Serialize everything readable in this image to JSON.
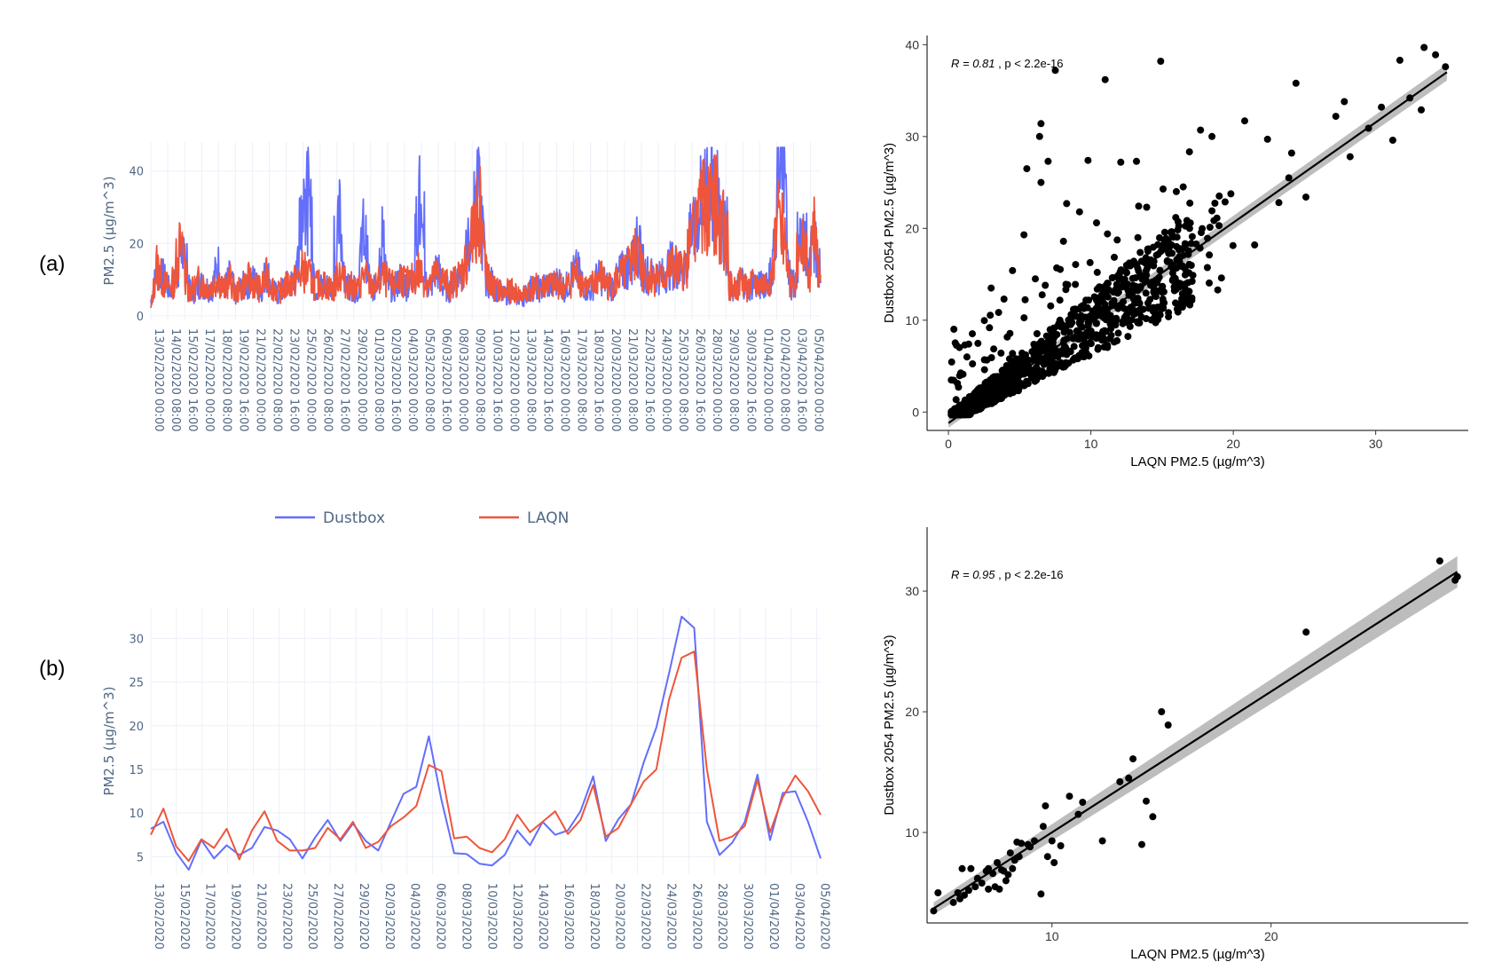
{
  "panels": {
    "a_label": "(a)",
    "b_label": "(b)"
  },
  "legend": {
    "dustbox": "Dustbox",
    "laqn": "LAQN",
    "dustbox_color": "#636efa",
    "laqn_color": "#ef553b"
  },
  "chart_data": [
    {
      "id": "a-timeseries",
      "type": "line",
      "title": "",
      "xlabel": "",
      "ylabel": "PM2.5 (µg/m^3)",
      "ylim": [
        -1,
        48
      ],
      "yticks": [
        0,
        20,
        40
      ],
      "grid": true,
      "xticks": [
        "13/02/2020 00:00",
        "14/02/2020 08:00",
        "15/02/2020 16:00",
        "17/02/2020 00:00",
        "18/02/2020 08:00",
        "19/02/2020 16:00",
        "21/02/2020 00:00",
        "22/02/2020 08:00",
        "23/02/2020 16:00",
        "25/02/2020 00:00",
        "26/02/2020 08:00",
        "27/02/2020 16:00",
        "29/02/2020 00:00",
        "01/03/2020 08:00",
        "02/03/2020 16:00",
        "04/03/2020 00:00",
        "05/03/2020 08:00",
        "06/03/2020 16:00",
        "08/03/2020 00:00",
        "09/03/2020 08:00",
        "10/03/2020 16:00",
        "12/03/2020 00:00",
        "13/03/2020 08:00",
        "14/03/2020 16:00",
        "16/03/2020 00:00",
        "17/03/2020 08:00",
        "18/03/2020 16:00",
        "20/03/2020 00:00",
        "21/03/2020 08:00",
        "22/03/2020 16:00",
        "24/03/2020 00:00",
        "25/03/2020 08:00",
        "26/03/2020 16:00",
        "28/03/2020 00:00",
        "29/03/2020 08:00",
        "30/03/2020 16:00",
        "01/04/2020 00:00",
        "02/04/2020 08:00",
        "03/04/2020 16:00",
        "05/04/2020 00:00"
      ],
      "x_start": "13/02/2020 00:00",
      "x_end": "05/04/2020 16:00",
      "series_note": "hourly",
      "series": [
        {
          "name": "Dustbox",
          "color": "#636efa",
          "hourly_profile": [
            4,
            14,
            12,
            8,
            10,
            22,
            9,
            7,
            10,
            9,
            8,
            16,
            8,
            12,
            6,
            9,
            10,
            11,
            7,
            14,
            8,
            6,
            9,
            10,
            12,
            36,
            37,
            8,
            9,
            9,
            8,
            30,
            10,
            9,
            7,
            28,
            9,
            8,
            25,
            9,
            8,
            12,
            9,
            10,
            38,
            10,
            9,
            15,
            9,
            8,
            10,
            14,
            20,
            30,
            38,
            12,
            10,
            8,
            6,
            7,
            6,
            5,
            8,
            9,
            8,
            10,
            9,
            11,
            8,
            12,
            14,
            10,
            7,
            11,
            12,
            9,
            9,
            13,
            14,
            19,
            21,
            14,
            12,
            13,
            12,
            15,
            16,
            14,
            17,
            27,
            33,
            37,
            46,
            38,
            33,
            10,
            7,
            12,
            8,
            10,
            9,
            11,
            13,
            42,
            40,
            10,
            9,
            30,
            12,
            27,
            11
          ]
        },
        {
          "name": "LAQN",
          "color": "#ef553b",
          "hourly_profile": [
            2,
            16,
            10,
            9,
            11,
            24,
            8,
            8,
            11,
            9,
            9,
            12,
            8,
            11,
            7,
            9,
            11,
            10,
            8,
            12,
            9,
            7,
            9,
            10,
            11,
            14,
            12,
            9,
            10,
            9,
            8,
            14,
            10,
            9,
            8,
            13,
            9,
            9,
            12,
            10,
            9,
            12,
            10,
            11,
            14,
            11,
            10,
            13,
            11,
            9,
            11,
            13,
            18,
            24,
            34,
            13,
            9,
            8,
            7,
            8,
            7,
            6,
            8,
            9,
            8,
            10,
            9,
            10,
            8,
            11,
            13,
            10,
            8,
            11,
            12,
            9,
            10,
            12,
            13,
            17,
            19,
            13,
            12,
            12,
            11,
            14,
            15,
            13,
            16,
            24,
            30,
            34,
            38,
            33,
            30,
            9,
            8,
            11,
            8,
            10,
            9,
            10,
            12,
            30,
            28,
            10,
            9,
            25,
            11,
            26,
            10
          ]
        }
      ]
    },
    {
      "id": "b-daily",
      "type": "line",
      "title": "",
      "xlabel": "",
      "ylabel": "PM2.5 (µg/m^3)",
      "ylim": [
        3,
        33.5
      ],
      "yticks": [
        5,
        10,
        15,
        20,
        25,
        30
      ],
      "grid": true,
      "xticks": [
        "13/02/2020",
        "15/02/2020",
        "17/02/2020",
        "19/02/2020",
        "21/02/2020",
        "23/02/2020",
        "25/02/2020",
        "27/02/2020",
        "29/02/2020",
        "02/03/2020",
        "04/03/2020",
        "06/03/2020",
        "08/03/2020",
        "10/03/2020",
        "12/03/2020",
        "14/03/2020",
        "16/03/2020",
        "18/03/2020",
        "20/03/2020",
        "22/03/2020",
        "24/03/2020",
        "26/03/2020",
        "28/03/2020",
        "30/03/2020",
        "01/04/2020",
        "03/04/2020",
        "05/04/2020"
      ],
      "x_start": "13/02/2020",
      "x_end": "05/04/2020",
      "series": [
        {
          "name": "Dustbox",
          "color": "#636efa",
          "values": [
            8.2,
            9.0,
            5.5,
            3.5,
            6.9,
            4.8,
            6.3,
            5.2,
            6.0,
            8.4,
            8.0,
            7.0,
            4.8,
            7.2,
            9.2,
            6.8,
            8.8,
            6.8,
            5.7,
            9.0,
            12.2,
            13.0,
            18.8,
            11.5,
            5.4,
            5.3,
            4.2,
            4.0,
            5.2,
            8.0,
            6.3,
            9.0,
            7.5,
            8.0,
            10.2,
            14.2,
            6.8,
            9.3,
            11.0,
            15.8,
            19.8,
            26.0,
            32.5,
            31.2,
            9.0,
            5.2,
            6.6,
            9.0,
            14.4,
            6.9,
            12.3,
            12.5,
            9.0,
            4.8
          ]
        },
        {
          "name": "LAQN",
          "color": "#ef553b",
          "values": [
            7.5,
            10.5,
            6.2,
            4.5,
            7.0,
            6.0,
            8.2,
            4.7,
            8.0,
            10.2,
            6.8,
            5.7,
            5.7,
            6.0,
            8.3,
            7.0,
            9.0,
            6.0,
            6.7,
            8.5,
            9.5,
            10.8,
            15.5,
            14.8,
            7.1,
            7.3,
            6.0,
            5.5,
            7.0,
            9.8,
            7.8,
            9.0,
            10.2,
            7.6,
            9.2,
            13.2,
            7.3,
            8.3,
            11.0,
            13.6,
            15.0,
            23.0,
            27.8,
            28.5,
            15.0,
            6.8,
            7.3,
            8.5,
            13.8,
            7.8,
            11.8,
            14.3,
            12.5,
            9.8
          ]
        }
      ]
    },
    {
      "id": "a-scatter",
      "type": "scatter",
      "title": "",
      "xlabel": "LAQN PM2.5 (µg/m^3)",
      "ylabel": "Dustbox 2054 PM2.5 (µg/m^3)",
      "xlim": [
        -1.5,
        36.5
      ],
      "ylim": [
        -2,
        41
      ],
      "xticks": [
        0,
        10,
        20,
        30
      ],
      "yticks": [
        0,
        10,
        20,
        30,
        40
      ],
      "grid": false,
      "stat_r": "R = 0.81",
      "stat_p": "p < 2.2e-16",
      "fit_line": {
        "x0": 0,
        "y0": -1.2,
        "x1": 35,
        "y1": 37.0
      },
      "outliers": [
        [
          7.5,
          37.2
        ],
        [
          11,
          36.2
        ],
        [
          14.9,
          38.2
        ],
        [
          6.5,
          31.4
        ],
        [
          6.4,
          30.0
        ],
        [
          7,
          27.3
        ],
        [
          5.5,
          26.5
        ],
        [
          6.5,
          25.0
        ],
        [
          6.1,
          14.5
        ],
        [
          3,
          13.5
        ],
        [
          1.3,
          6.0
        ],
        [
          16,
          24.0
        ],
        [
          20.8,
          31.7
        ],
        [
          24.4,
          35.8
        ],
        [
          24.1,
          28.2
        ],
        [
          22.4,
          29.7
        ],
        [
          18.5,
          30.0
        ],
        [
          17.7,
          30.7
        ],
        [
          27.2,
          32.2
        ],
        [
          27.8,
          33.8
        ],
        [
          31.7,
          38.3
        ],
        [
          33.4,
          39.7
        ],
        [
          34.2,
          38.9
        ],
        [
          34.9,
          37.6
        ],
        [
          33.2,
          32.9
        ],
        [
          32.4,
          34.2
        ],
        [
          30.4,
          33.2
        ],
        [
          29.5,
          30.9
        ],
        [
          31.2,
          29.6
        ],
        [
          28.2,
          27.8
        ],
        [
          12.1,
          27.2
        ],
        [
          9.8,
          27.4
        ],
        [
          13.2,
          27.3
        ],
        [
          8.3,
          22.7
        ],
        [
          9.2,
          21.8
        ],
        [
          10.4,
          20.6
        ],
        [
          23.2,
          22.8
        ],
        [
          21.5,
          18.2
        ],
        [
          19.0,
          20.3
        ],
        [
          13.3,
          19.0
        ],
        [
          5.3,
          19.3
        ],
        [
          6.8,
          13.8
        ],
        [
          4.5,
          15.4
        ],
        [
          3.9,
          12.3
        ],
        [
          23.9,
          25.5
        ],
        [
          25.1,
          23.4
        ]
      ]
    },
    {
      "id": "b-scatter",
      "type": "scatter",
      "title": "",
      "xlabel": "LAQN PM2.5 (µg/m^3)",
      "ylabel": "Dustbox 2054 PM2.5 (µg/m^3)",
      "xlim": [
        4.3,
        29.0
      ],
      "ylim": [
        2.5,
        35.3
      ],
      "xticks": [
        10,
        20
      ],
      "yticks": [
        10,
        20,
        30
      ],
      "grid": false,
      "stat_r": "R = 0.95",
      "stat_p": "p < 2.2e-16",
      "fit_line": {
        "x0": 4.6,
        "y0": 3.7,
        "x1": 28.5,
        "y1": 31.6
      },
      "points": [
        [
          4.6,
          3.5
        ],
        [
          4.8,
          5.0
        ],
        [
          5.5,
          4.2
        ],
        [
          5.7,
          5.0
        ],
        [
          5.8,
          4.5
        ],
        [
          5.9,
          7.0
        ],
        [
          6.0,
          4.8
        ],
        [
          6.2,
          5.2
        ],
        [
          6.3,
          7.0
        ],
        [
          6.5,
          5.5
        ],
        [
          6.6,
          6.2
        ],
        [
          6.8,
          5.8
        ],
        [
          7.0,
          6.8
        ],
        [
          7.1,
          7.0
        ],
        [
          7.1,
          5.3
        ],
        [
          7.3,
          6.6
        ],
        [
          7.4,
          5.5
        ],
        [
          7.5,
          7.5
        ],
        [
          7.6,
          5.3
        ],
        [
          7.7,
          6.9
        ],
        [
          7.8,
          6.8
        ],
        [
          7.9,
          6.0
        ],
        [
          8.0,
          6.5
        ],
        [
          8.1,
          8.3
        ],
        [
          8.2,
          7.0
        ],
        [
          8.3,
          7.7
        ],
        [
          8.4,
          9.2
        ],
        [
          8.5,
          8.0
        ],
        [
          8.6,
          9.1
        ],
        [
          8.9,
          9.0
        ],
        [
          9.0,
          8.8
        ],
        [
          9.2,
          9.3
        ],
        [
          9.5,
          4.9
        ],
        [
          9.6,
          10.5
        ],
        [
          9.7,
          12.2
        ],
        [
          9.8,
          8.0
        ],
        [
          10.0,
          9.3
        ],
        [
          10.1,
          7.5
        ],
        [
          10.4,
          8.9
        ],
        [
          10.8,
          13.0
        ],
        [
          11.2,
          11.5
        ],
        [
          11.4,
          12.5
        ],
        [
          12.3,
          9.3
        ],
        [
          13.1,
          14.2
        ],
        [
          13.5,
          14.5
        ],
        [
          13.7,
          16.1
        ],
        [
          14.1,
          9.0
        ],
        [
          14.3,
          12.6
        ],
        [
          14.6,
          11.3
        ],
        [
          15.0,
          20.0
        ],
        [
          15.3,
          18.9
        ],
        [
          21.6,
          26.6
        ],
        [
          27.7,
          32.5
        ],
        [
          28.5,
          31.2
        ],
        [
          28.4,
          30.9
        ]
      ]
    }
  ]
}
